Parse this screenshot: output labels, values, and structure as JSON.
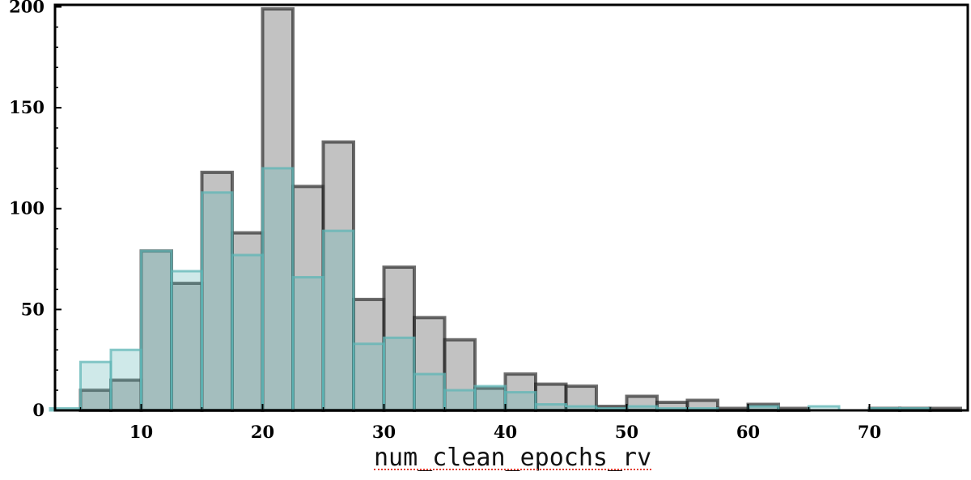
{
  "chart_data": {
    "type": "bar",
    "title": "",
    "xlabel": "num_clean_epochs_rv",
    "ylabel": "",
    "xlim": [
      2.9,
      78.1
    ],
    "ylim": [
      0,
      201
    ],
    "bin_edges": [
      2.5,
      5,
      7.5,
      10,
      12.5,
      15,
      17.5,
      20,
      22.5,
      25,
      27.5,
      30,
      32.5,
      35,
      37.5,
      40,
      42.5,
      45,
      47.5,
      50,
      52.5,
      55,
      57.5,
      60,
      62.5,
      65,
      67.5,
      70,
      72.5,
      75,
      77.5
    ],
    "series": [
      {
        "values": [
          0,
          10,
          15,
          79,
          63,
          118,
          88,
          199,
          111,
          133,
          55,
          71,
          46,
          35,
          11,
          18,
          13,
          12,
          2,
          7,
          4,
          5,
          1,
          3,
          1,
          0,
          0,
          1,
          1,
          1
        ],
        "color": "#999999"
      },
      {
        "values": [
          1,
          24,
          30,
          79,
          69,
          108,
          77,
          120,
          66,
          89,
          33,
          36,
          18,
          10,
          12,
          9,
          3,
          2,
          1,
          2,
          1,
          1,
          0,
          2,
          0,
          2,
          0,
          1,
          1,
          0
        ],
        "color": "#5fb6b6"
      }
    ],
    "xticks": [
      10,
      20,
      30,
      40,
      50,
      60,
      70
    ],
    "yticks": [
      0,
      50,
      100,
      150,
      200
    ],
    "grid": false
  }
}
